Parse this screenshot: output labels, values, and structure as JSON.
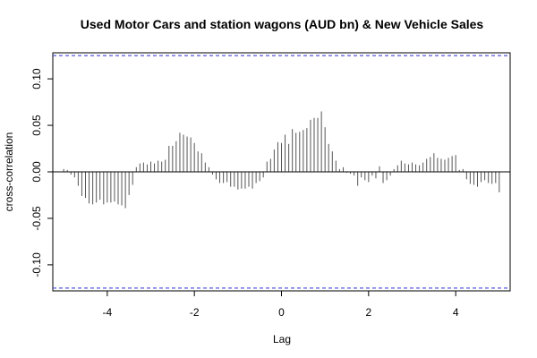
{
  "chart_data": {
    "type": "bar",
    "title": "Used Motor Cars and station wagons (AUD bn) & New Vehicle Sales",
    "xlabel": "Lag",
    "ylabel": "cross-correlation",
    "xlim": [
      -5.25,
      5.25
    ],
    "ylim": [
      -0.128,
      0.128
    ],
    "x_ticks": [
      -4,
      -2,
      0,
      2,
      4
    ],
    "x_tick_labels": [
      "-4",
      "-2",
      "0",
      "2",
      "4"
    ],
    "y_ticks": [
      -0.1,
      -0.05,
      0.0,
      0.05,
      0.1
    ],
    "y_tick_labels": [
      "-0.10",
      "-0.05",
      "0.00",
      "0.05",
      "0.10"
    ],
    "confidence_limits": [
      0.125,
      -0.125
    ],
    "confidence_color": "#5555dd",
    "bar_color": "#555555",
    "lag_step": 0.0833,
    "series": [
      {
        "lags": [
          -5.0,
          -4.917,
          -4.833,
          -4.75,
          -4.667,
          -4.583,
          -4.5,
          -4.417,
          -4.333,
          -4.25,
          -4.167,
          -4.083,
          -4.0,
          -3.917,
          -3.833,
          -3.75,
          -3.667,
          -3.583,
          -3.5,
          -3.417,
          -3.333,
          -3.25,
          -3.167,
          -3.083,
          -3.0,
          -2.917,
          -2.833,
          -2.75,
          -2.667,
          -2.583,
          -2.5,
          -2.417,
          -2.333,
          -2.25,
          -2.167,
          -2.083,
          -2.0,
          -1.917,
          -1.833,
          -1.75,
          -1.667,
          -1.583,
          -1.5,
          -1.417,
          -1.333,
          -1.25,
          -1.167,
          -1.083,
          -1.0,
          -0.917,
          -0.833,
          -0.75,
          -0.667,
          -0.583,
          -0.5,
          -0.417,
          -0.333,
          -0.25,
          -0.167,
          -0.083,
          0.0,
          0.083,
          0.167,
          0.25,
          0.333,
          0.417,
          0.5,
          0.583,
          0.667,
          0.75,
          0.833,
          0.917,
          1.0,
          1.083,
          1.167,
          1.25,
          1.333,
          1.417,
          1.5,
          1.583,
          1.667,
          1.75,
          1.833,
          1.917,
          2.0,
          2.083,
          2.167,
          2.25,
          2.333,
          2.417,
          2.5,
          2.583,
          2.667,
          2.75,
          2.833,
          2.917,
          3.0,
          3.083,
          3.167,
          3.25,
          3.333,
          3.417,
          3.5,
          3.583,
          3.667,
          3.75,
          3.833,
          3.917,
          4.0,
          4.083,
          4.167,
          4.25,
          4.333,
          4.417,
          4.5,
          4.583,
          4.667,
          4.75,
          4.833,
          4.917,
          5.0
        ],
        "values": [
          0.003,
          0.002,
          -0.003,
          -0.006,
          -0.015,
          -0.026,
          -0.028,
          -0.034,
          -0.035,
          -0.033,
          -0.03,
          -0.035,
          -0.033,
          -0.033,
          -0.032,
          -0.035,
          -0.036,
          -0.039,
          -0.025,
          -0.014,
          0.005,
          0.009,
          0.01,
          0.008,
          0.011,
          0.009,
          0.012,
          0.011,
          0.013,
          0.028,
          0.028,
          0.033,
          0.042,
          0.04,
          0.038,
          0.037,
          0.031,
          0.022,
          0.02,
          0.01,
          0.005,
          -0.003,
          -0.008,
          -0.012,
          -0.012,
          -0.011,
          -0.016,
          -0.016,
          -0.019,
          -0.018,
          -0.018,
          -0.016,
          -0.018,
          -0.012,
          -0.01,
          -0.006,
          0.011,
          0.014,
          0.024,
          0.032,
          0.031,
          0.04,
          0.03,
          0.046,
          0.042,
          0.043,
          0.045,
          0.047,
          0.056,
          0.058,
          0.058,
          0.065,
          0.048,
          0.03,
          0.022,
          0.012,
          0.003,
          0.005,
          -0.001,
          -0.002,
          -0.004,
          -0.015,
          -0.006,
          -0.009,
          -0.011,
          -0.004,
          -0.007,
          0.006,
          -0.012,
          -0.009,
          -0.004,
          0.003,
          0.007,
          0.012,
          0.009,
          0.008,
          0.01,
          0.008,
          0.007,
          0.01,
          0.014,
          0.016,
          0.02,
          0.015,
          0.014,
          0.013,
          0.015,
          0.017,
          0.018,
          0.002,
          0.003,
          -0.008,
          -0.013,
          -0.014,
          -0.016,
          -0.011,
          -0.009,
          -0.012,
          -0.013,
          -0.012,
          -0.022
        ]
      }
    ]
  }
}
